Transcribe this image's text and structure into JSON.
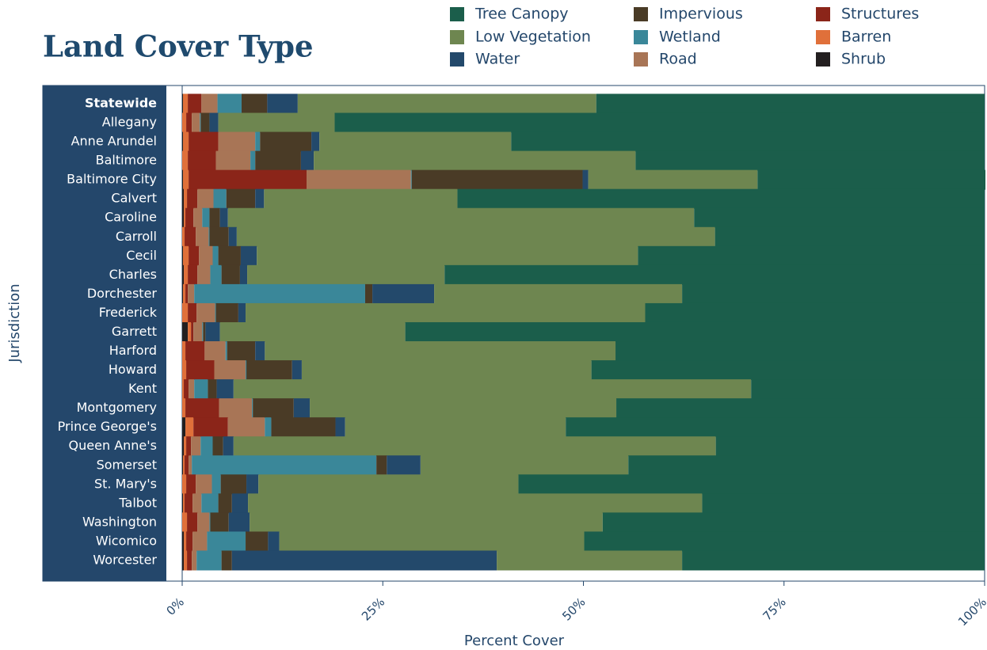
{
  "chart_data": {
    "type": "stacked-barh",
    "title": "Land Cover Type",
    "xlabel": "Percent Cover",
    "ylabel": "Jurisdiction",
    "categories": [
      "Statewide",
      "Allegany",
      "Anne Arundel",
      "Baltimore",
      "Baltimore City",
      "Calvert",
      "Caroline",
      "Carroll",
      "Cecil",
      "Charles",
      "Dorchester",
      "Frederick",
      "Garrett",
      "Harford",
      "Howard",
      "Kent",
      "Montgomery",
      "Prince George's",
      "Queen Anne's",
      "Somerset",
      "St. Mary's",
      "Talbot",
      "Washington",
      "Wicomico",
      "Worcester"
    ],
    "xlim": [
      0,
      100
    ],
    "xticks": [
      {
        "value": 0,
        "label": "0%"
      },
      {
        "value": 25,
        "label": "25%"
      },
      {
        "value": 50,
        "label": "50%"
      },
      {
        "value": 75,
        "label": "75%"
      },
      {
        "value": 100,
        "label": "100%"
      }
    ],
    "series": [
      {
        "name": "Shrub",
        "color": "#231f20",
        "values": [
          0.1,
          0,
          0.1,
          0,
          0.1,
          0.2,
          0.2,
          0,
          0.1,
          0.2,
          0.1,
          0,
          0.7,
          0,
          0,
          0,
          0,
          0.4,
          0.2,
          0.1,
          0,
          0.1,
          0,
          0.2,
          0.2
        ]
      },
      {
        "name": "Barren",
        "color": "#e0703a",
        "values": [
          0.6,
          0.5,
          0.7,
          0.7,
          0.7,
          0.4,
          0.2,
          0.3,
          0.7,
          0.5,
          0.3,
          0.7,
          0.4,
          0.4,
          0.5,
          0.2,
          0.4,
          1.0,
          0.3,
          0.2,
          0.5,
          0.2,
          0.6,
          0.3,
          0.4
        ]
      },
      {
        "name": "Structures",
        "color": "#8b2519",
        "values": [
          1.7,
          0.7,
          3.7,
          3.5,
          14.7,
          1.3,
          1.0,
          1.4,
          1.3,
          1.2,
          0.3,
          1.1,
          0.3,
          2.4,
          3.5,
          0.6,
          4.2,
          4.3,
          0.6,
          0.5,
          1.2,
          1.0,
          1.3,
          0.8,
          0.6
        ]
      },
      {
        "name": "Road",
        "color": "#a87556",
        "values": [
          2.0,
          1.0,
          4.6,
          4.3,
          13.0,
          2.0,
          1.1,
          1.6,
          1.7,
          1.6,
          0.8,
          2.3,
          1.1,
          2.6,
          3.9,
          0.7,
          4.1,
          4.6,
          1.2,
          0.4,
          2.0,
          1.1,
          1.5,
          1.8,
          0.6
        ]
      },
      {
        "name": "Wetland",
        "color": "#3a8799",
        "values": [
          3.0,
          0.1,
          0.6,
          0.6,
          0.1,
          1.6,
          0.9,
          0.1,
          0.7,
          1.4,
          21.3,
          0.1,
          0.1,
          0.2,
          0.1,
          1.7,
          0.1,
          0.8,
          1.5,
          23.0,
          1.1,
          2.1,
          0.1,
          4.8,
          3.1
        ]
      },
      {
        "name": "Impervious",
        "color": "#4a3b26",
        "values": [
          3.2,
          1.1,
          6.4,
          5.7,
          21.3,
          3.6,
          1.3,
          2.4,
          2.8,
          2.3,
          0.9,
          2.8,
          0.3,
          3.5,
          5.7,
          1.1,
          5.1,
          8.0,
          1.3,
          1.3,
          3.2,
          1.7,
          2.3,
          2.8,
          1.3
        ]
      },
      {
        "name": "Water",
        "color": "#23496b",
        "values": [
          3.8,
          1.1,
          1.0,
          1.6,
          0.7,
          1.1,
          1.0,
          1.0,
          2.0,
          0.9,
          7.7,
          0.9,
          1.8,
          1.2,
          1.2,
          2.1,
          2.0,
          1.2,
          1.3,
          4.2,
          1.5,
          2.0,
          2.6,
          1.4,
          33.0
        ]
      },
      {
        "name": "Low Vegetation",
        "color": "#6e8650",
        "values": [
          37.2,
          14.5,
          23.9,
          40.1,
          21.1,
          24.1,
          58.1,
          59.6,
          47.5,
          24.6,
          30.9,
          49.8,
          23.1,
          43.7,
          36.1,
          64.5,
          38.2,
          27.5,
          60.1,
          25.9,
          32.4,
          56.6,
          44.0,
          38.0,
          23.1
        ]
      },
      {
        "name": "Tree Canopy",
        "color": "#1b5e4b",
        "values": [
          48.4,
          81.0,
          59.0,
          43.5,
          28.4,
          65.7,
          36.2,
          33.6,
          43.2,
          67.3,
          37.7,
          42.3,
          72.2,
          46.0,
          49.0,
          29.1,
          45.9,
          52.2,
          33.5,
          44.4,
          58.1,
          35.2,
          47.6,
          49.9,
          37.7
        ]
      }
    ]
  }
}
